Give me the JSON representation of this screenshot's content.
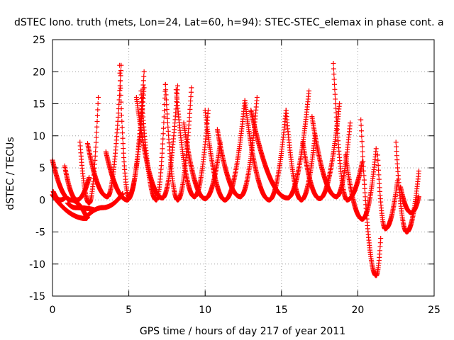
{
  "chart_data": {
    "type": "scatter",
    "title": "dSTEC Iono. truth (mets, Lon=24, Lat=60, h=94): STEC-STEC_elemax in phase cont. a",
    "xlabel": "GPS time / hours of day 217 of year 2011",
    "ylabel": "dSTEC  / TECUs",
    "xlim": [
      0,
      25
    ],
    "ylim": [
      -15,
      25
    ],
    "xticks": [
      0,
      5,
      10,
      15,
      20,
      25
    ],
    "yticks": [
      -15,
      -10,
      -5,
      0,
      5,
      10,
      15,
      20,
      25
    ],
    "grid": true,
    "marker": "+",
    "colors": {
      "series": "#ff0000",
      "grid": "#a0a0a0",
      "axis": "#000000"
    },
    "arcs": [
      {
        "x_start": 0.0,
        "x_end": 2.2,
        "x_min": 1.2,
        "y_start": 6.2,
        "y_min": 0.0,
        "y_end": -2.5
      },
      {
        "x_start": 0.05,
        "x_end": 0.9,
        "x_min": 0.5,
        "y_start": 1.3,
        "y_min": 0.0,
        "y_end": 0.5
      },
      {
        "x_start": 0.0,
        "x_end": 2.3,
        "x_min": 2.2,
        "y_start": 0.8,
        "y_min": -2.9,
        "y_end": -2.7
      },
      {
        "x_start": 0.8,
        "x_end": 2.4,
        "x_min": 1.6,
        "y_start": 5.3,
        "y_min": 0.0,
        "y_end": 3.5
      },
      {
        "x_start": 1.0,
        "x_end": 2.7,
        "x_min": 1.5,
        "y_start": -0.5,
        "y_min": -1.2,
        "y_end": -1.5
      },
      {
        "x_start": 2.2,
        "x_end": 4.6,
        "x_min": 3.3,
        "y_start": -2.7,
        "y_min": -1.2,
        "y_end": 1.0
      },
      {
        "x_start": 1.8,
        "x_end": 3.0,
        "x_min": 2.4,
        "y_start": 9.0,
        "y_min": -0.5,
        "y_end": 16.0
      },
      {
        "x_start": 2.3,
        "x_end": 4.5,
        "x_min": 3.6,
        "y_start": 8.8,
        "y_min": 0.5,
        "y_end": 21.0
      },
      {
        "x_start": 3.5,
        "x_end": 6.0,
        "x_min": 4.9,
        "y_start": 7.5,
        "y_min": 0.0,
        "y_end": 17.5
      },
      {
        "x_start": 4.4,
        "x_end": 6.0,
        "x_min": 5.0,
        "y_start": 21.0,
        "y_min": 0.5,
        "y_end": 20.0
      },
      {
        "x_start": 5.8,
        "x_end": 7.4,
        "x_min": 6.8,
        "y_start": 17.0,
        "y_min": 0.0,
        "y_end": 18.0
      },
      {
        "x_start": 5.5,
        "x_end": 8.2,
        "x_min": 7.2,
        "y_start": 16.0,
        "y_min": 0.3,
        "y_end": 17.8
      },
      {
        "x_start": 7.4,
        "x_end": 9.1,
        "x_min": 8.2,
        "y_start": 18.0,
        "y_min": 0.0,
        "y_end": 17.5
      },
      {
        "x_start": 8.1,
        "x_end": 10.2,
        "x_min": 9.3,
        "y_start": 17.2,
        "y_min": 0.5,
        "y_end": 14.0
      },
      {
        "x_start": 8.6,
        "x_end": 11.0,
        "x_min": 10.0,
        "y_start": 12.0,
        "y_min": 0.2,
        "y_end": 9.0
      },
      {
        "x_start": 10.0,
        "x_end": 12.6,
        "x_min": 11.3,
        "y_start": 14.0,
        "y_min": 0.0,
        "y_end": 15.5
      },
      {
        "x_start": 10.8,
        "x_end": 13.4,
        "x_min": 12.3,
        "y_start": 11.0,
        "y_min": 0.5,
        "y_end": 16.0
      },
      {
        "x_start": 12.6,
        "x_end": 15.3,
        "x_min": 14.2,
        "y_start": 15.5,
        "y_min": 0.0,
        "y_end": 14.0
      },
      {
        "x_start": 13.0,
        "x_end": 16.8,
        "x_min": 15.4,
        "y_start": 14.0,
        "y_min": 0.3,
        "y_end": 17.0
      },
      {
        "x_start": 15.3,
        "x_end": 17.2,
        "x_min": 16.3,
        "y_start": 14.0,
        "y_min": 0.0,
        "y_end": 10.0
      },
      {
        "x_start": 16.4,
        "x_end": 18.8,
        "x_min": 17.5,
        "y_start": 9.0,
        "y_min": 0.2,
        "y_end": 15.0
      },
      {
        "x_start": 17.0,
        "x_end": 19.5,
        "x_min": 18.6,
        "y_start": 13.0,
        "y_min": 0.5,
        "y_end": 12.0
      },
      {
        "x_start": 18.4,
        "x_end": 20.3,
        "x_min": 19.3,
        "y_start": 21.3,
        "y_min": 0.0,
        "y_end": 6.0
      },
      {
        "x_start": 19.2,
        "x_end": 21.2,
        "x_min": 20.3,
        "y_start": 7.0,
        "y_min": -3.0,
        "y_end": 8.0
      },
      {
        "x_start": 20.2,
        "x_end": 21.5,
        "x_min": 21.2,
        "y_start": 12.5,
        "y_min": -11.8,
        "y_end": -6.0
      },
      {
        "x_start": 21.3,
        "x_end": 22.6,
        "x_min": 21.8,
        "y_start": 7.0,
        "y_min": -4.5,
        "y_end": 3.0
      },
      {
        "x_start": 22.5,
        "x_end": 24.0,
        "x_min": 23.2,
        "y_start": 9.0,
        "y_min": -5.0,
        "y_end": 4.5
      },
      {
        "x_start": 22.8,
        "x_end": 24.0,
        "x_min": 23.5,
        "y_start": 2.0,
        "y_min": -2.0,
        "y_end": 0.5
      }
    ]
  }
}
